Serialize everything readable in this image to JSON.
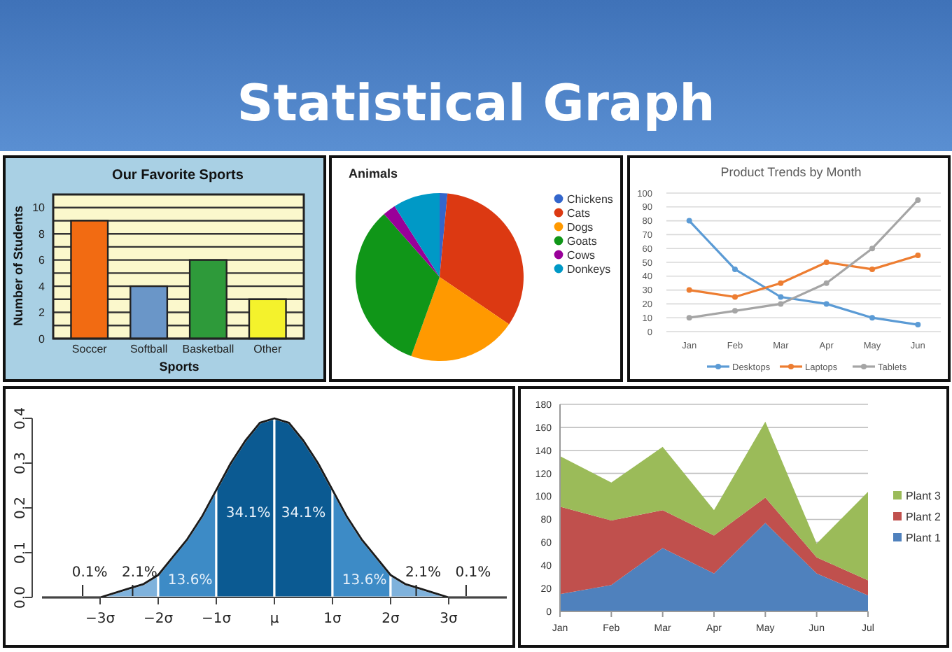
{
  "chart_data": [
    {
      "type": "other",
      "title": "Statistical Graph"
    },
    {
      "type": "bar",
      "title": "Our Favorite Sports",
      "xlabel": "Sports",
      "ylabel": "Number of Students",
      "categories": [
        "Soccer",
        "Softball",
        "Basketball",
        "Other"
      ],
      "values": [
        9,
        4,
        6,
        3
      ],
      "colors": [
        "#f26b12",
        "#6a96c8",
        "#2e9a3a",
        "#f4f22c"
      ],
      "ylim": [
        0,
        11
      ],
      "yticks": [
        0,
        {
          "value": 1,
          "label": null
        },
        2,
        {
          "value": 3,
          "label": null
        },
        4,
        {
          "value": 5,
          "label": null
        },
        6,
        {
          "value": 7,
          "label": null
        },
        8,
        {
          "value": 9,
          "label": null
        },
        10
      ],
      "grid": "y"
    },
    {
      "type": "pie",
      "title": "Animals",
      "categories": [
        "Chickens",
        "Cats",
        "Dogs",
        "Goats",
        "Cows",
        "Donkeys"
      ],
      "values": [
        1.5,
        33,
        21,
        33,
        2.5,
        9
      ],
      "colors": [
        "#3366cc",
        "#dc3912",
        "#ff9900",
        "#109618",
        "#990099",
        "#0099c6"
      ],
      "legend": "right"
    },
    {
      "type": "line",
      "title": "Product Trends by Month",
      "categories": [
        "Jan",
        "Feb",
        "Mar",
        "Apr",
        "May",
        "Jun"
      ],
      "series": [
        {
          "name": "Desktops",
          "color": "#5b9bd5",
          "values": [
            80,
            45,
            25,
            20,
            10,
            5
          ]
        },
        {
          "name": "Laptops",
          "color": "#ed7d31",
          "values": [
            30,
            25,
            35,
            50,
            45,
            55
          ]
        },
        {
          "name": "Tablets",
          "color": "#a5a5a5",
          "values": [
            10,
            15,
            20,
            35,
            60,
            95
          ]
        }
      ],
      "ylim": [
        0,
        100
      ],
      "yticks": [
        0,
        10,
        20,
        30,
        40,
        50,
        60,
        70,
        80,
        90,
        100
      ],
      "grid": "y",
      "legend": "bottom",
      "marker": "circle"
    },
    {
      "type": "area",
      "xlim": [
        -4,
        4
      ],
      "xticks": [
        {
          "value": -3,
          "label": "−3σ"
        },
        {
          "value": -2,
          "label": "−2σ"
        },
        {
          "value": -1,
          "label": "−1σ"
        },
        {
          "value": 0,
          "label": "μ"
        },
        {
          "value": 1,
          "label": "1σ"
        },
        {
          "value": 2,
          "label": "2σ"
        },
        {
          "value": 3,
          "label": "3σ"
        }
      ],
      "ylim": [
        0,
        0.4
      ],
      "yticks": [
        {
          "value": 0,
          "label": "0.0"
        },
        0.1,
        0.2,
        0.3,
        0.4
      ],
      "series": [
        {
          "color": "#7fb2dc",
          "x": [
            -3,
            -2.75,
            -2.5,
            -2.25,
            -2
          ],
          "values": [
            0.0,
            0.01,
            0.02,
            0.03,
            0.05
          ]
        },
        {
          "color": "#3d8bc6",
          "x": [
            -2,
            -1.75,
            -1.5,
            -1.25,
            -1
          ],
          "values": [
            0.05,
            0.09,
            0.13,
            0.18,
            0.24
          ]
        },
        {
          "color": "#0b5a92",
          "x": [
            -1,
            -0.75,
            -0.5,
            -0.25,
            0
          ],
          "values": [
            0.24,
            0.3,
            0.35,
            0.39,
            0.4
          ]
        },
        {
          "color": "#0b5a92",
          "x": [
            0,
            0.25,
            0.5,
            0.75,
            1
          ],
          "values": [
            0.4,
            0.39,
            0.35,
            0.3,
            0.24
          ]
        },
        {
          "color": "#3d8bc6",
          "x": [
            1,
            1.25,
            1.5,
            1.75,
            2
          ],
          "values": [
            0.24,
            0.18,
            0.13,
            0.09,
            0.05
          ]
        },
        {
          "color": "#7fb2dc",
          "x": [
            2,
            2.25,
            2.5,
            2.75,
            3
          ],
          "values": [
            0.05,
            0.03,
            0.02,
            0.01,
            0.0
          ]
        },
        {
          "type": "line",
          "color": "#1a1a1a",
          "x": [
            -4,
            -3.75,
            -3.5,
            -3.25,
            -3,
            -2.75,
            -2.5,
            -2.25,
            -2,
            -1.75,
            -1.5,
            -1.25,
            -1,
            -0.75,
            -0.5,
            -0.25,
            0,
            0.25,
            0.5,
            0.75,
            1,
            1.25,
            1.5,
            1.75,
            2,
            2.25,
            2.5,
            2.75,
            3,
            3.25,
            3.5,
            3.75,
            4
          ],
          "values": [
            0,
            0,
            0,
            0,
            0,
            0.01,
            0.02,
            0.03,
            0.05,
            0.09,
            0.13,
            0.18,
            0.24,
            0.3,
            0.35,
            0.39,
            0.4,
            0.39,
            0.35,
            0.3,
            0.24,
            0.18,
            0.13,
            0.09,
            0.05,
            0.03,
            0.02,
            0.01,
            0,
            0,
            0,
            0,
            0
          ]
        }
      ],
      "annotations": [
        {
          "text": "0.1%",
          "x": -3.3,
          "y": 0
        },
        {
          "text": "2.1%",
          "x": -2.44,
          "y": 0
        },
        "13.6%",
        "34.1%",
        "34.1%",
        "13.6%",
        {
          "text": "2.1%",
          "x": 2.44,
          "y": 0
        },
        {
          "text": "0.1%",
          "x": 3.3,
          "y": 0
        }
      ]
    },
    {
      "type": "area",
      "stacked": true,
      "categories": [
        "Jan",
        "Feb",
        "Mar",
        "Apr",
        "May",
        "Jun",
        "Jul"
      ],
      "series": [
        {
          "name": "Plant 1",
          "color": "#4f81bd",
          "values": [
            15,
            23,
            55,
            33,
            77,
            33,
            14
          ]
        },
        {
          "name": "Plant 2",
          "color": "#c0504d",
          "values": [
            76,
            56,
            33,
            33,
            22,
            14,
            13
          ]
        },
        {
          "name": "Plant 3",
          "color": "#9bbb59",
          "values": [
            44,
            33,
            55,
            22,
            66,
            12,
            77
          ]
        }
      ],
      "ylim": [
        0,
        180
      ],
      "yticks": [
        0,
        20,
        40,
        60,
        80,
        100,
        120,
        140,
        160,
        180
      ],
      "grid": "y",
      "legend": "right"
    }
  ]
}
